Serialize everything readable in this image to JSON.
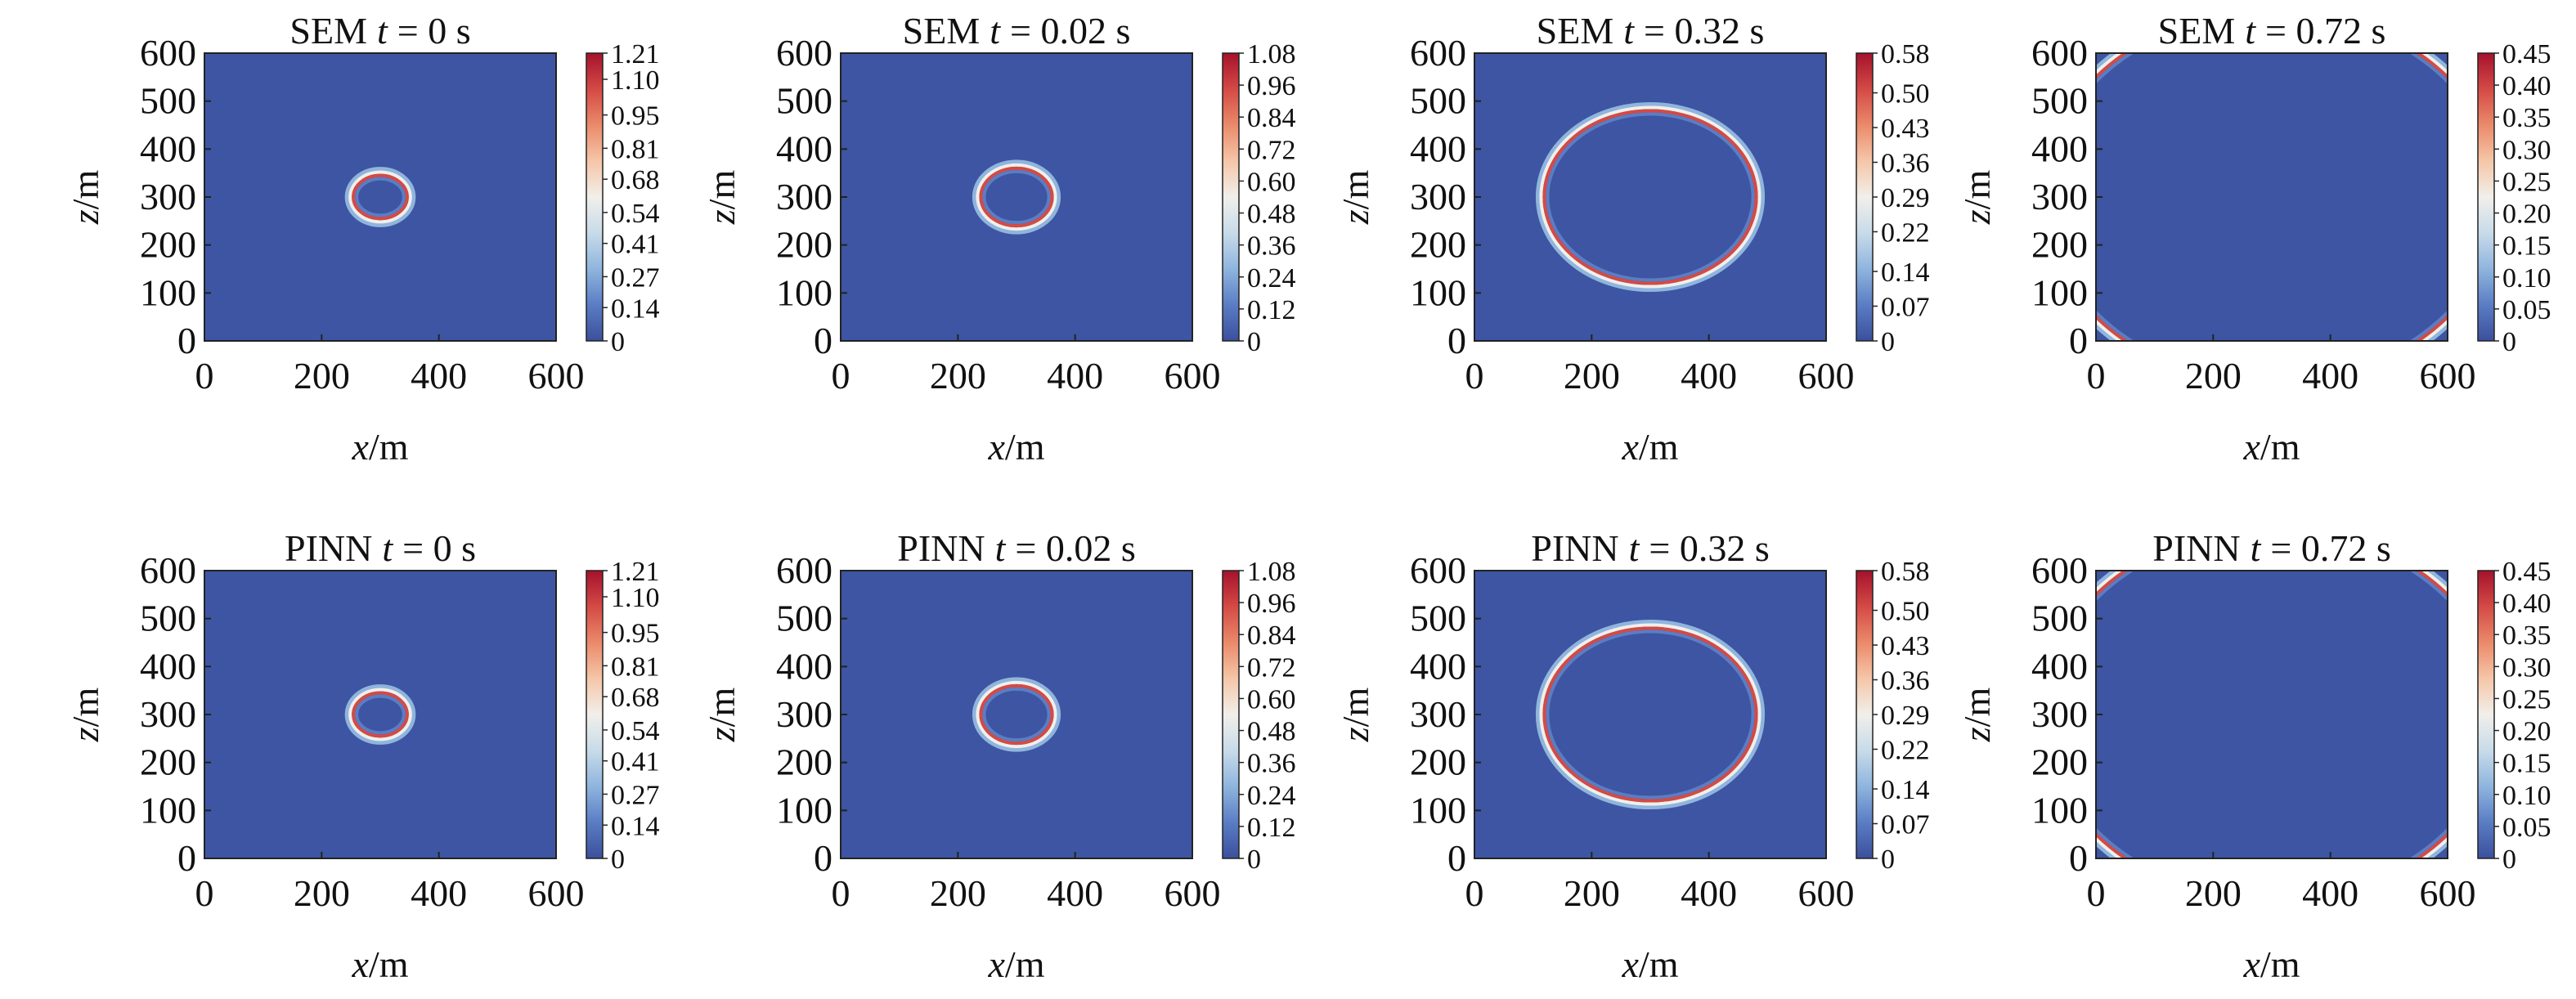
{
  "chart_data": [
    {
      "type": "heatmap",
      "method": "SEM",
      "t_label": "t",
      "t_value": "= 0 s",
      "xlabel_var": "x",
      "xlabel_unit": "/m",
      "ylabel_var": "z",
      "ylabel_unit": "/m",
      "xlim": [
        0,
        600
      ],
      "ylim": [
        0,
        600
      ],
      "xticks": [
        "0",
        "200",
        "400",
        "600"
      ],
      "yticks": [
        "0",
        "100",
        "200",
        "300",
        "400",
        "500",
        "600"
      ],
      "ring_center_m": [
        300,
        300
      ],
      "ring_radius_m": 50,
      "colorbar": {
        "min": 0,
        "max": 1.21,
        "ticks": [
          "0",
          "0.14",
          "0.27",
          "0.41",
          "0.54",
          "0.68",
          "0.81",
          "0.95",
          "1.10",
          "1.21"
        ]
      }
    },
    {
      "type": "heatmap",
      "method": "SEM",
      "t_label": "t",
      "t_value": "= 0.02 s",
      "xlabel_var": "x",
      "xlabel_unit": "/m",
      "ylabel_var": "z",
      "ylabel_unit": "/m",
      "xlim": [
        0,
        600
      ],
      "ylim": [
        0,
        600
      ],
      "xticks": [
        "0",
        "200",
        "400",
        "600"
      ],
      "yticks": [
        "0",
        "100",
        "200",
        "300",
        "400",
        "500",
        "600"
      ],
      "ring_center_m": [
        300,
        300
      ],
      "ring_radius_m": 65,
      "colorbar": {
        "min": 0,
        "max": 1.08,
        "ticks": [
          "0",
          "0.12",
          "0.24",
          "0.36",
          "0.48",
          "0.60",
          "0.72",
          "0.84",
          "0.96",
          "1.08"
        ]
      }
    },
    {
      "type": "heatmap",
      "method": "SEM",
      "t_label": "t",
      "t_value": "= 0.32 s",
      "xlabel_var": "x",
      "xlabel_unit": "/m",
      "ylabel_var": "z",
      "ylabel_unit": "/m",
      "xlim": [
        0,
        600
      ],
      "ylim": [
        0,
        600
      ],
      "xticks": [
        "0",
        "200",
        "400",
        "600"
      ],
      "yticks": [
        "0",
        "100",
        "200",
        "300",
        "400",
        "500",
        "600"
      ],
      "ring_center_m": [
        300,
        300
      ],
      "ring_radius_m": 185,
      "colorbar": {
        "min": 0,
        "max": 0.58,
        "ticks": [
          "0",
          "0.07",
          "0.14",
          "0.22",
          "0.29",
          "0.36",
          "0.43",
          "0.50",
          "0.58"
        ]
      }
    },
    {
      "type": "heatmap",
      "method": "SEM",
      "t_label": "t",
      "t_value": "= 0.72 s",
      "xlabel_var": "x",
      "xlabel_unit": "/m",
      "ylabel_var": "z",
      "ylabel_unit": "/m",
      "xlim": [
        0,
        600
      ],
      "ylim": [
        0,
        600
      ],
      "xticks": [
        "0",
        "200",
        "400",
        "600"
      ],
      "yticks": [
        "0",
        "100",
        "200",
        "300",
        "400",
        "500",
        "600"
      ],
      "ring_center_m": [
        300,
        300
      ],
      "ring_radius_m": 395,
      "colorbar": {
        "min": 0,
        "max": 0.45,
        "ticks": [
          "0",
          "0.05",
          "0.10",
          "0.15",
          "0.20",
          "0.25",
          "0.30",
          "0.35",
          "0.40",
          "0.45"
        ]
      }
    },
    {
      "type": "heatmap",
      "method": "PINN",
      "t_label": "t",
      "t_value": "= 0 s",
      "xlabel_var": "x",
      "xlabel_unit": "/m",
      "ylabel_var": "z",
      "ylabel_unit": "/m",
      "xlim": [
        0,
        600
      ],
      "ylim": [
        0,
        600
      ],
      "xticks": [
        "0",
        "200",
        "400",
        "600"
      ],
      "yticks": [
        "0",
        "100",
        "200",
        "300",
        "400",
        "500",
        "600"
      ],
      "ring_center_m": [
        300,
        300
      ],
      "ring_radius_m": 50,
      "colorbar": {
        "min": 0,
        "max": 1.21,
        "ticks": [
          "0",
          "0.14",
          "0.27",
          "0.41",
          "0.54",
          "0.68",
          "0.81",
          "0.95",
          "1.10",
          "1.21"
        ]
      }
    },
    {
      "type": "heatmap",
      "method": "PINN",
      "t_label": "t",
      "t_value": "= 0.02 s",
      "xlabel_var": "x",
      "xlabel_unit": "/m",
      "ylabel_var": "z",
      "ylabel_unit": "/m",
      "xlim": [
        0,
        600
      ],
      "ylim": [
        0,
        600
      ],
      "xticks": [
        "0",
        "200",
        "400",
        "600"
      ],
      "yticks": [
        "0",
        "100",
        "200",
        "300",
        "400",
        "500",
        "600"
      ],
      "ring_center_m": [
        300,
        300
      ],
      "ring_radius_m": 65,
      "colorbar": {
        "min": 0,
        "max": 1.08,
        "ticks": [
          "0",
          "0.12",
          "0.24",
          "0.36",
          "0.48",
          "0.60",
          "0.72",
          "0.84",
          "0.96",
          "1.08"
        ]
      }
    },
    {
      "type": "heatmap",
      "method": "PINN",
      "t_label": "t",
      "t_value": "= 0.32 s",
      "xlabel_var": "x",
      "xlabel_unit": "/m",
      "ylabel_var": "z",
      "ylabel_unit": "/m",
      "xlim": [
        0,
        600
      ],
      "ylim": [
        0,
        600
      ],
      "xticks": [
        "0",
        "200",
        "400",
        "600"
      ],
      "yticks": [
        "0",
        "100",
        "200",
        "300",
        "400",
        "500",
        "600"
      ],
      "ring_center_m": [
        300,
        300
      ],
      "ring_radius_m": 185,
      "colorbar": {
        "min": 0,
        "max": 0.58,
        "ticks": [
          "0",
          "0.07",
          "0.14",
          "0.22",
          "0.29",
          "0.36",
          "0.43",
          "0.50",
          "0.58"
        ]
      }
    },
    {
      "type": "heatmap",
      "method": "PINN",
      "t_label": "t",
      "t_value": "= 0.72 s",
      "xlabel_var": "x",
      "xlabel_unit": "/m",
      "ylabel_var": "z",
      "ylabel_unit": "/m",
      "xlim": [
        0,
        600
      ],
      "ylim": [
        0,
        600
      ],
      "xticks": [
        "0",
        "200",
        "400",
        "600"
      ],
      "yticks": [
        "0",
        "100",
        "200",
        "300",
        "400",
        "500",
        "600"
      ],
      "ring_center_m": [
        300,
        300
      ],
      "ring_radius_m": 395,
      "colorbar": {
        "min": 0,
        "max": 0.45,
        "ticks": [
          "0",
          "0.05",
          "0.10",
          "0.15",
          "0.20",
          "0.25",
          "0.30",
          "0.35",
          "0.40",
          "0.45"
        ]
      }
    }
  ],
  "colors": {
    "background_field": "#3d55a2",
    "colormap": [
      "#3b4f9c",
      "#5a7dc4",
      "#8fb5de",
      "#c8dbe9",
      "#f1efea",
      "#f5c6a8",
      "#ea8a6a",
      "#d44a45",
      "#a5122c"
    ]
  }
}
